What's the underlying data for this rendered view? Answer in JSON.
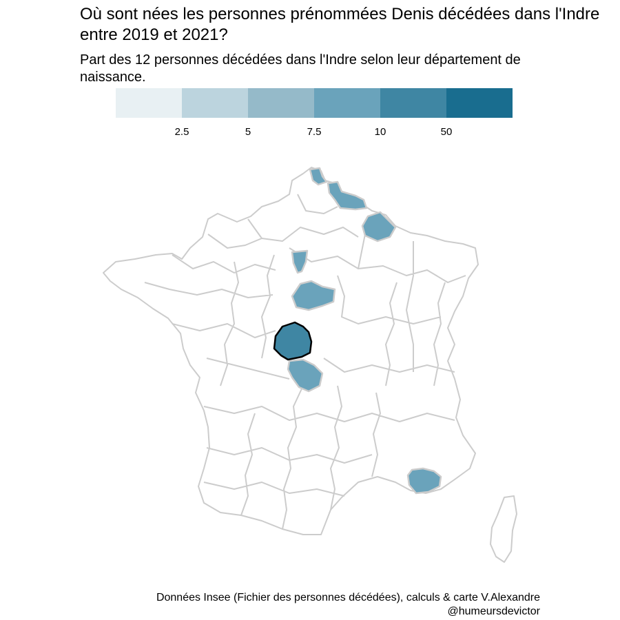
{
  "title": "Où sont nées les personnes prénommées Denis décédées dans l'Indre entre 2019 et 2021?",
  "subtitle": "Part des 12 personnes décédées dans l'Indre selon leur département de naissance.",
  "legend": {
    "colors": [
      "#e8f0f3",
      "#bcd4de",
      "#95bac9",
      "#6aa3bb",
      "#3f86a3",
      "#196d8f"
    ],
    "ticks": [
      "2.5",
      "5",
      "7.5",
      "10",
      "50"
    ]
  },
  "map": {
    "border_color": "#cccccc",
    "highlight_border_color": "#000000",
    "highlighted_departments": [
      {
        "name": "Pas-de-Calais",
        "share_class": 3
      },
      {
        "name": "Nord",
        "share_class": 3
      },
      {
        "name": "Marne",
        "share_class": 3
      },
      {
        "name": "Eure-et-Loir",
        "share_class": 3
      },
      {
        "name": "Loiret",
        "share_class": 3
      },
      {
        "name": "Indre",
        "share_class": 4,
        "outlined": true
      },
      {
        "name": "Creuse",
        "share_class": 3
      },
      {
        "name": "Var",
        "share_class": 3
      }
    ]
  },
  "caption": "Données Insee (Fichier des personnes décédées), calculs & carte V.Alexandre @humeursdevictor"
}
